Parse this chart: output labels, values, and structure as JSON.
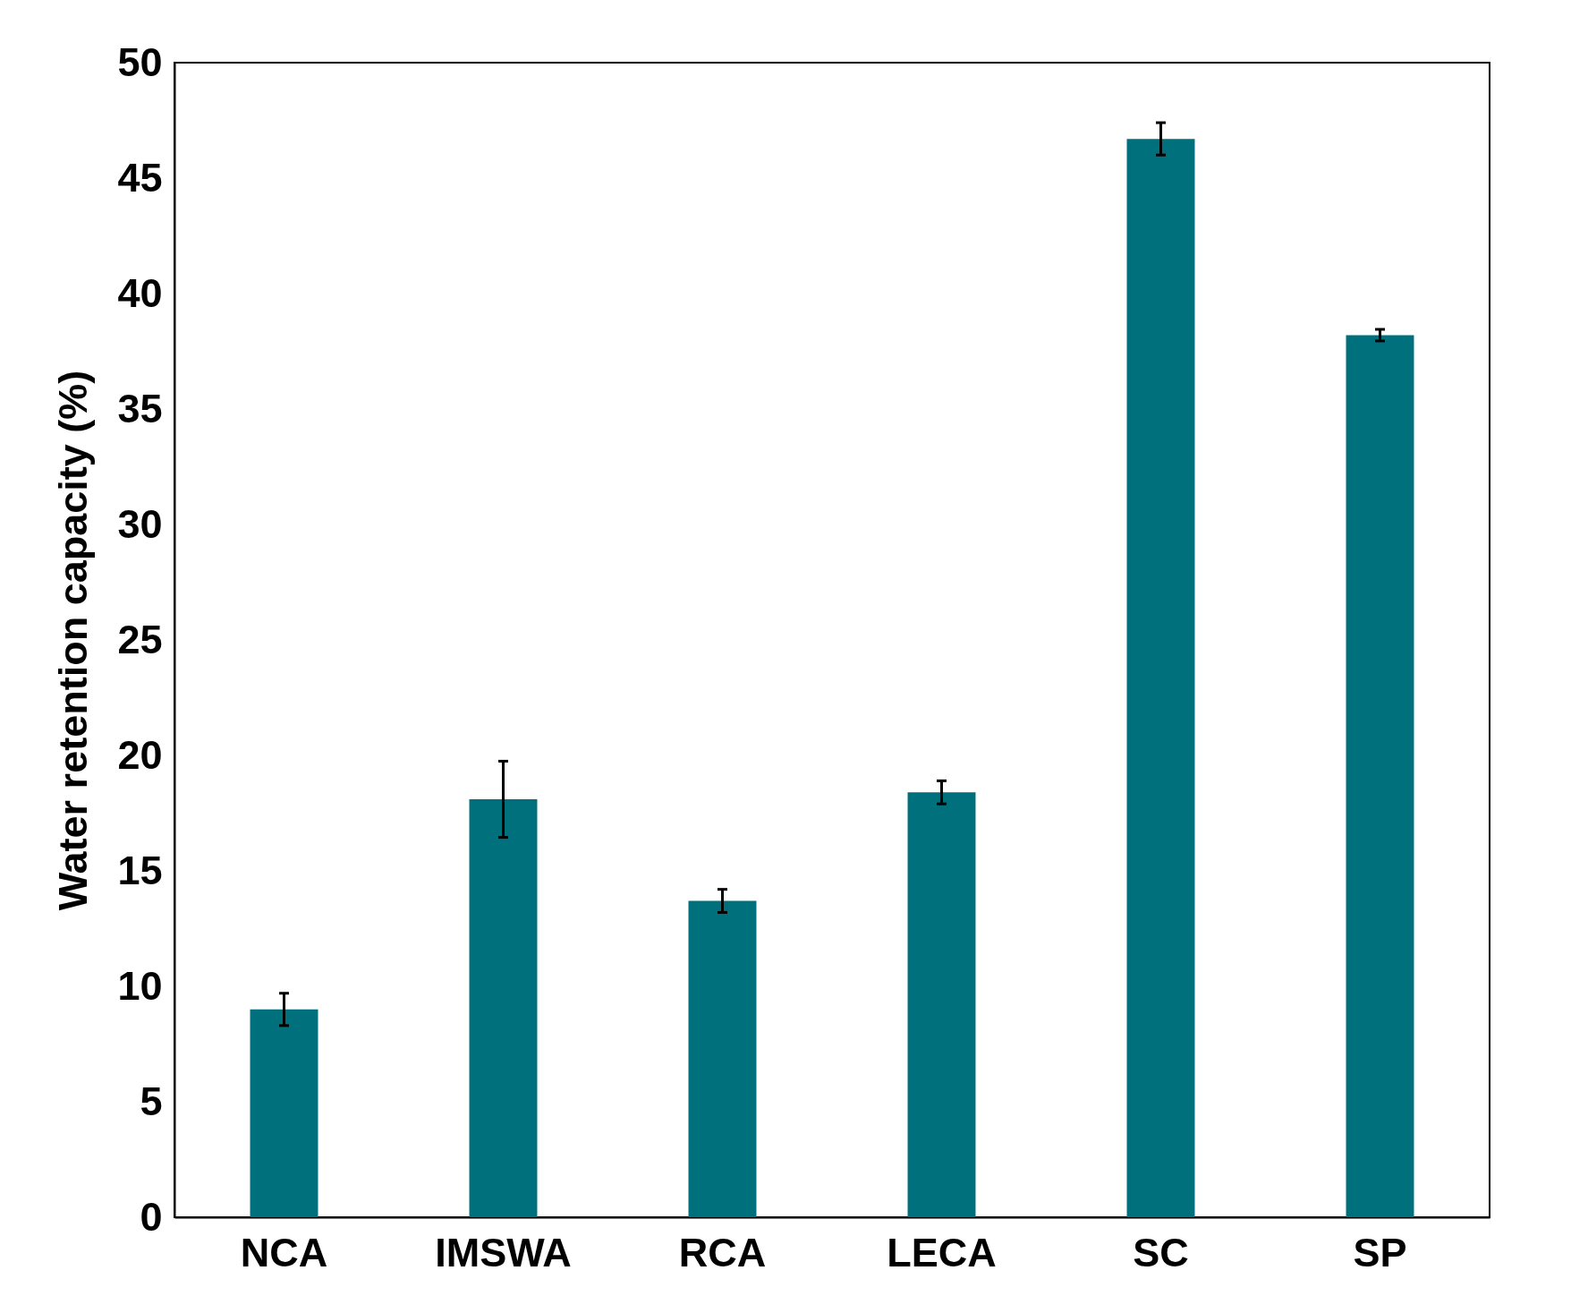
{
  "chart_data": {
    "type": "bar",
    "ylabel": "Water retention capacity (%)",
    "categories": [
      "NCA",
      "IMSWA",
      "RCA",
      "LECA",
      "SC",
      "SP"
    ],
    "values": [
      9.0,
      18.1,
      13.7,
      18.4,
      46.7,
      38.2
    ],
    "errors": [
      0.7,
      1.65,
      0.5,
      0.5,
      0.7,
      0.25
    ],
    "color": "#00707c",
    "ylim": [
      0,
      50
    ],
    "yticks": [
      0,
      5,
      10,
      15,
      20,
      25,
      30,
      35,
      40,
      45,
      50
    ],
    "grid": false
  }
}
